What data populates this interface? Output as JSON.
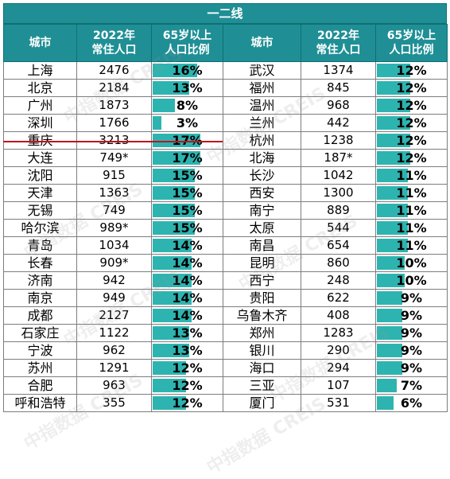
{
  "title": "一二线",
  "headers": {
    "city": "城市",
    "pop_line1": "2022年",
    "pop_line2": "常住人口",
    "ratio_line1": "65岁以上",
    "ratio_line2": "人口比例"
  },
  "bar_color": "#2eb4b0",
  "header_color": "#1f8f95",
  "divider_color": "#c0141c",
  "left": [
    {
      "city": "上海",
      "pop": "2476",
      "pct": "16%",
      "value": 16
    },
    {
      "city": "北京",
      "pop": "2184",
      "pct": "13%",
      "value": 13
    },
    {
      "city": "广州",
      "pop": "1873",
      "pct": "8%",
      "value": 8
    },
    {
      "city": "深圳",
      "pop": "1766",
      "pct": "3%",
      "value": 3
    },
    {
      "city": "重庆",
      "pop": "3213",
      "pct": "17%",
      "value": 17
    },
    {
      "city": "大连",
      "pop": "749*",
      "pct": "17%",
      "value": 17
    },
    {
      "city": "沈阳",
      "pop": "915",
      "pct": "15%",
      "value": 15
    },
    {
      "city": "天津",
      "pop": "1363",
      "pct": "15%",
      "value": 15
    },
    {
      "city": "无锡",
      "pop": "749",
      "pct": "15%",
      "value": 15
    },
    {
      "city": "哈尔滨",
      "pop": "989*",
      "pct": "15%",
      "value": 15
    },
    {
      "city": "青岛",
      "pop": "1034",
      "pct": "14%",
      "value": 14
    },
    {
      "city": "长春",
      "pop": "909*",
      "pct": "14%",
      "value": 14
    },
    {
      "city": "济南",
      "pop": "942",
      "pct": "14%",
      "value": 14
    },
    {
      "city": "南京",
      "pop": "949",
      "pct": "14%",
      "value": 14
    },
    {
      "city": "成都",
      "pop": "2127",
      "pct": "14%",
      "value": 14
    },
    {
      "city": "石家庄",
      "pop": "1122",
      "pct": "13%",
      "value": 13
    },
    {
      "city": "宁波",
      "pop": "962",
      "pct": "13%",
      "value": 13
    },
    {
      "city": "苏州",
      "pop": "1291",
      "pct": "12%",
      "value": 12
    },
    {
      "city": "合肥",
      "pop": "963",
      "pct": "12%",
      "value": 12
    },
    {
      "city": "呼和浩特",
      "pop": "355",
      "pct": "12%",
      "value": 12
    }
  ],
  "right": [
    {
      "city": "武汉",
      "pop": "1374",
      "pct": "12%",
      "value": 12
    },
    {
      "city": "福州",
      "pop": "845",
      "pct": "12%",
      "value": 12
    },
    {
      "city": "温州",
      "pop": "968",
      "pct": "12%",
      "value": 12
    },
    {
      "city": "兰州",
      "pop": "442",
      "pct": "12%",
      "value": 12
    },
    {
      "city": "杭州",
      "pop": "1238",
      "pct": "12%",
      "value": 12
    },
    {
      "city": "北海",
      "pop": "187*",
      "pct": "12%",
      "value": 12
    },
    {
      "city": "长沙",
      "pop": "1042",
      "pct": "11%",
      "value": 11
    },
    {
      "city": "西安",
      "pop": "1300",
      "pct": "11%",
      "value": 11
    },
    {
      "city": "南宁",
      "pop": "889",
      "pct": "11%",
      "value": 11
    },
    {
      "city": "太原",
      "pop": "544",
      "pct": "11%",
      "value": 11
    },
    {
      "city": "南昌",
      "pop": "654",
      "pct": "11%",
      "value": 11
    },
    {
      "city": "昆明",
      "pop": "860",
      "pct": "10%",
      "value": 10
    },
    {
      "city": "西宁",
      "pop": "248",
      "pct": "10%",
      "value": 10
    },
    {
      "city": "贵阳",
      "pop": "622",
      "pct": "9%",
      "value": 9
    },
    {
      "city": "乌鲁木齐",
      "pop": "408",
      "pct": "9%",
      "value": 9
    },
    {
      "city": "郑州",
      "pop": "1283",
      "pct": "9%",
      "value": 9
    },
    {
      "city": "银川",
      "pop": "290",
      "pct": "9%",
      "value": 9
    },
    {
      "city": "海口",
      "pop": "294",
      "pct": "9%",
      "value": 9
    },
    {
      "city": "三亚",
      "pop": "107",
      "pct": "7%",
      "value": 7
    },
    {
      "city": "厦门",
      "pop": "531",
      "pct": "6%",
      "value": 6
    }
  ],
  "watermark": {
    "cn": "中指数据",
    "en": "CREIS"
  }
}
